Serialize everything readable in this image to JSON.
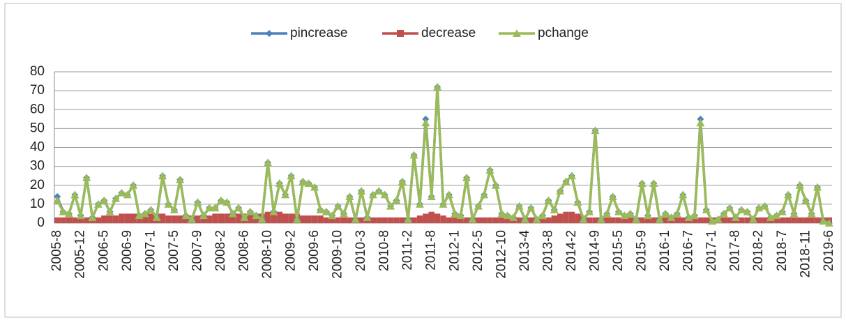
{
  "chart_data": {
    "type": "combo",
    "categories": [
      "2005-8",
      null,
      null,
      null,
      "2005-12",
      null,
      null,
      null,
      "2006-5",
      null,
      null,
      null,
      "2006-9",
      null,
      null,
      null,
      "2007-1",
      null,
      null,
      null,
      "2007-5",
      null,
      null,
      null,
      "2007-9",
      null,
      null,
      null,
      "2008-2",
      null,
      null,
      null,
      "2008-6",
      null,
      null,
      null,
      "2008-10",
      null,
      null,
      null,
      "2009-2",
      null,
      null,
      null,
      "2009-6",
      null,
      null,
      null,
      "2009-10",
      null,
      null,
      null,
      "2010-3",
      null,
      null,
      null,
      "2010-8",
      null,
      null,
      null,
      "2011-2",
      null,
      null,
      null,
      "2011-8",
      null,
      null,
      null,
      "2012-1",
      null,
      null,
      null,
      "2012-5",
      null,
      null,
      null,
      "2012-10",
      null,
      null,
      null,
      "2013-4",
      null,
      null,
      null,
      "2013-8",
      null,
      null,
      null,
      "2014-2",
      null,
      null,
      null,
      "2014-9",
      null,
      null,
      null,
      "2015-5",
      null,
      null,
      null,
      "2015-9",
      null,
      null,
      null,
      "2016-1",
      null,
      null,
      null,
      "2016-7",
      null,
      null,
      null,
      "2017-1",
      null,
      null,
      null,
      "2017-8",
      null,
      null,
      null,
      "2018-2",
      null,
      null,
      null,
      "2018-7",
      null,
      null,
      null,
      "2018-11",
      null,
      null,
      null,
      "2019-6"
    ],
    "series": [
      {
        "name": "pincrease",
        "kind": "line",
        "marker": "diamond",
        "color": "#4f81bd",
        "values": [
          14,
          6,
          5,
          15,
          4,
          24,
          3,
          10,
          12,
          6,
          13,
          16,
          15,
          20,
          4,
          5,
          7,
          3,
          25,
          10,
          7,
          23,
          4,
          2,
          11,
          4,
          8,
          8,
          12,
          11,
          5,
          8,
          3,
          6,
          4,
          2,
          32,
          6,
          21,
          15,
          25,
          2,
          22,
          21,
          19,
          7,
          6,
          4,
          9,
          5,
          14,
          2,
          17,
          3,
          15,
          17,
          15,
          9,
          12,
          22,
          2,
          36,
          10,
          55,
          14,
          72,
          10,
          15,
          5,
          4,
          24,
          2,
          9,
          15,
          28,
          20,
          5,
          4,
          3,
          9,
          2,
          8,
          2,
          4,
          12,
          7,
          17,
          22,
          25,
          11,
          2,
          6,
          49,
          2,
          5,
          14,
          6,
          4,
          5,
          2,
          21,
          4,
          21,
          2,
          5,
          3,
          5,
          15,
          3,
          4,
          55,
          7,
          1,
          2,
          5,
          8,
          3,
          7,
          6,
          2,
          8,
          9,
          3,
          4,
          6,
          15,
          5,
          20,
          12,
          5,
          19,
          1,
          0
        ]
      },
      {
        "name": "decrease",
        "kind": "bar",
        "marker": "square",
        "color": "#c0504d",
        "values": [
          3,
          3,
          3,
          3,
          3,
          3,
          3,
          3,
          4,
          4,
          4,
          5,
          5,
          5,
          5,
          5,
          5,
          5,
          5,
          4,
          4,
          4,
          4,
          4,
          4,
          4,
          4,
          5,
          5,
          5,
          5,
          5,
          5,
          5,
          5,
          5,
          6,
          6,
          6,
          5,
          5,
          5,
          4,
          4,
          4,
          4,
          3,
          3,
          3,
          3,
          3,
          3,
          3,
          3,
          3,
          3,
          3,
          3,
          3,
          3,
          3,
          3,
          4,
          5,
          6,
          5,
          4,
          3,
          3,
          3,
          3,
          3,
          3,
          3,
          3,
          3,
          3,
          3,
          3,
          3,
          3,
          3,
          3,
          3,
          3,
          4,
          5,
          6,
          6,
          5,
          4,
          3,
          3,
          3,
          3,
          3,
          3,
          3,
          3,
          3,
          3,
          3,
          3,
          3,
          3,
          3,
          3,
          3,
          3,
          3,
          3,
          3,
          3,
          3,
          3,
          3,
          3,
          3,
          3,
          3,
          3,
          3,
          3,
          3,
          3,
          3,
          3,
          3,
          3,
          3,
          3,
          3,
          3
        ]
      },
      {
        "name": "pchange",
        "kind": "line",
        "marker": "triangle",
        "color": "#9bbb59",
        "values": [
          12,
          6,
          5,
          15,
          4,
          24,
          3,
          10,
          12,
          6,
          13,
          16,
          15,
          20,
          4,
          5,
          7,
          3,
          25,
          10,
          7,
          23,
          4,
          2,
          11,
          4,
          8,
          8,
          12,
          11,
          5,
          8,
          3,
          6,
          4,
          2,
          32,
          6,
          21,
          15,
          25,
          2,
          22,
          21,
          19,
          7,
          6,
          4,
          9,
          5,
          14,
          2,
          17,
          3,
          15,
          17,
          15,
          9,
          12,
          22,
          2,
          36,
          10,
          53,
          14,
          72,
          10,
          15,
          5,
          4,
          24,
          2,
          9,
          15,
          28,
          20,
          5,
          4,
          3,
          9,
          2,
          8,
          2,
          4,
          12,
          7,
          17,
          22,
          25,
          11,
          2,
          6,
          49,
          2,
          5,
          14,
          6,
          4,
          5,
          2,
          21,
          4,
          21,
          2,
          5,
          3,
          5,
          15,
          3,
          4,
          53,
          7,
          1,
          2,
          5,
          8,
          3,
          7,
          6,
          2,
          8,
          9,
          3,
          4,
          6,
          15,
          5,
          20,
          12,
          5,
          19,
          1,
          0
        ]
      }
    ],
    "ylim": [
      0,
      80
    ],
    "yticks": [
      0,
      10,
      20,
      30,
      40,
      50,
      60,
      70,
      80
    ],
    "grid": true,
    "legend": "top"
  }
}
